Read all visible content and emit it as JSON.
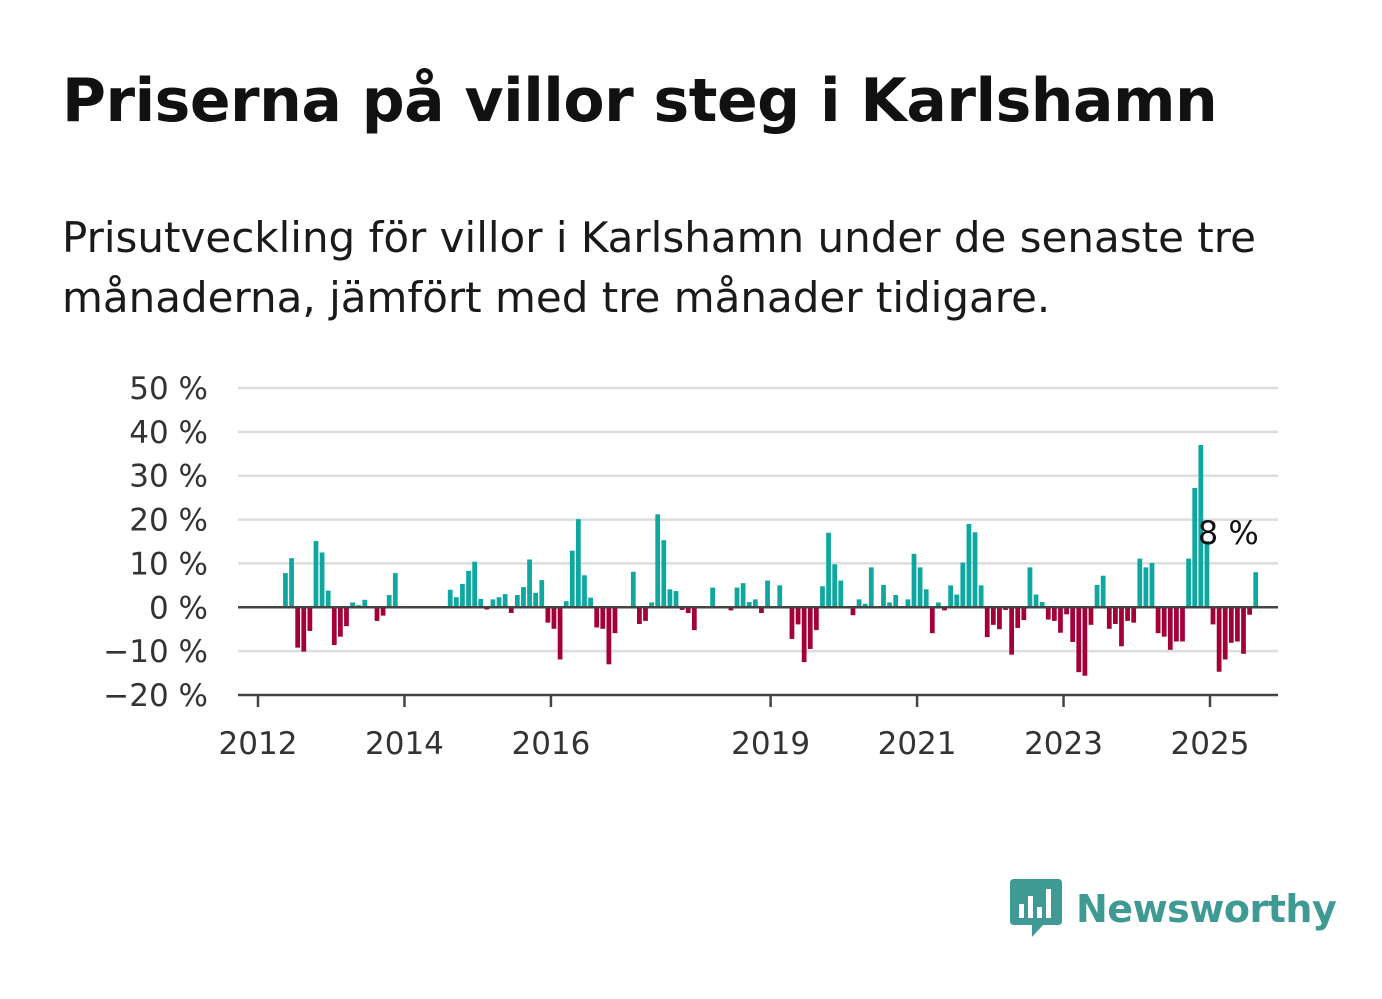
{
  "title": "Priserna på villor steg i Karlshamn",
  "subtitle": "Prisutveckling för villor i Karlshamn under de senaste tre månaderna, jämfört med tre månader tidigare.",
  "logo": {
    "text": "Newsworthy",
    "icon": "bar-chart-speech-bubble-icon",
    "color": "#3f9a93"
  },
  "colors": {
    "positive": "#0fa8a0",
    "negative": "#a3003a",
    "grid": "#dddddd",
    "axis": "#444444"
  },
  "chart_data": {
    "type": "bar",
    "title": "",
    "xlabel": "",
    "ylabel": "",
    "ylim": [
      -20,
      50
    ],
    "yticks": [
      50,
      40,
      30,
      20,
      10,
      0,
      -10,
      -20
    ],
    "ytick_labels": [
      "50 %",
      "40 %",
      "30 %",
      "20 %",
      "10 %",
      "0 %",
      "−10 %",
      "−20 %"
    ],
    "xlim": [
      2012.0,
      2026.0
    ],
    "xticks": [
      2012,
      2014,
      2016,
      2019,
      2021,
      2023,
      2025
    ],
    "xtick_labels": [
      "2012",
      "2014",
      "2016",
      "2019",
      "2021",
      "2023",
      "2025"
    ],
    "grid": true,
    "annotation": {
      "text": "8 %",
      "year": 2025.25,
      "value": 8
    },
    "series": [
      {
        "start_year": 2012.375,
        "step_years": 0.08333,
        "values": [
          7.8,
          11.2,
          -9.2,
          -10.1,
          -5.4,
          15.1,
          12.5,
          3.8,
          -8.6,
          -6.7,
          -4.3,
          1.1,
          0.5,
          1.7,
          0,
          -3.1,
          -1.9,
          2.8,
          7.8,
          0,
          0,
          0,
          0,
          0,
          0,
          0,
          0,
          4.0,
          2.3,
          5.3,
          8.3,
          10.4,
          1.9,
          -0.5,
          1.8,
          2.3,
          3.0,
          -1.3,
          2.8,
          4.6,
          10.9,
          3.3,
          6.2,
          -3.5,
          -4.9,
          -11.9,
          1.4,
          12.9,
          20.1,
          7.3,
          2.2,
          -4.6,
          -4.9,
          -13.0,
          -5.9,
          0,
          0,
          8.1,
          -3.8,
          -3.1,
          1.1,
          21.2,
          15.3,
          4.1,
          3.7,
          -0.6,
          -1.3,
          -5.2,
          0,
          0,
          4.5,
          0,
          0,
          -0.7,
          4.5,
          5.5,
          1.2,
          1.8,
          -1.3,
          6.1,
          0,
          5.0,
          0,
          -7.2,
          -3.9,
          -12.5,
          -9.5,
          -5.2,
          4.8,
          17.0,
          9.8,
          6.1,
          0,
          -1.8,
          1.8,
          0.8,
          9.1,
          0,
          5.1,
          1.1,
          2.8,
          0,
          1.8,
          12.2,
          9.1,
          4.1,
          -5.9,
          1.1,
          -0.7,
          5.0,
          2.9,
          10.2,
          19.0,
          17.1,
          5.0,
          -6.8,
          -4.0,
          -5.0,
          -0.6,
          -10.8,
          -4.7,
          -2.9,
          9.1,
          2.9,
          1.2,
          -2.8,
          -3.1,
          -5.8,
          -1.6,
          -7.9,
          -14.8,
          -15.6,
          -4.0,
          5.1,
          7.2,
          -4.9,
          -3.8,
          -8.9,
          -3.1,
          -3.5,
          11.1,
          9.1,
          10.1,
          -5.9,
          -6.7,
          -9.7,
          -7.8,
          -7.8,
          11.1,
          27.2,
          37.0,
          15.1,
          -3.9,
          -14.7,
          -11.9,
          -8.1,
          -7.8,
          -10.6,
          -1.7,
          8.0
        ]
      }
    ]
  }
}
